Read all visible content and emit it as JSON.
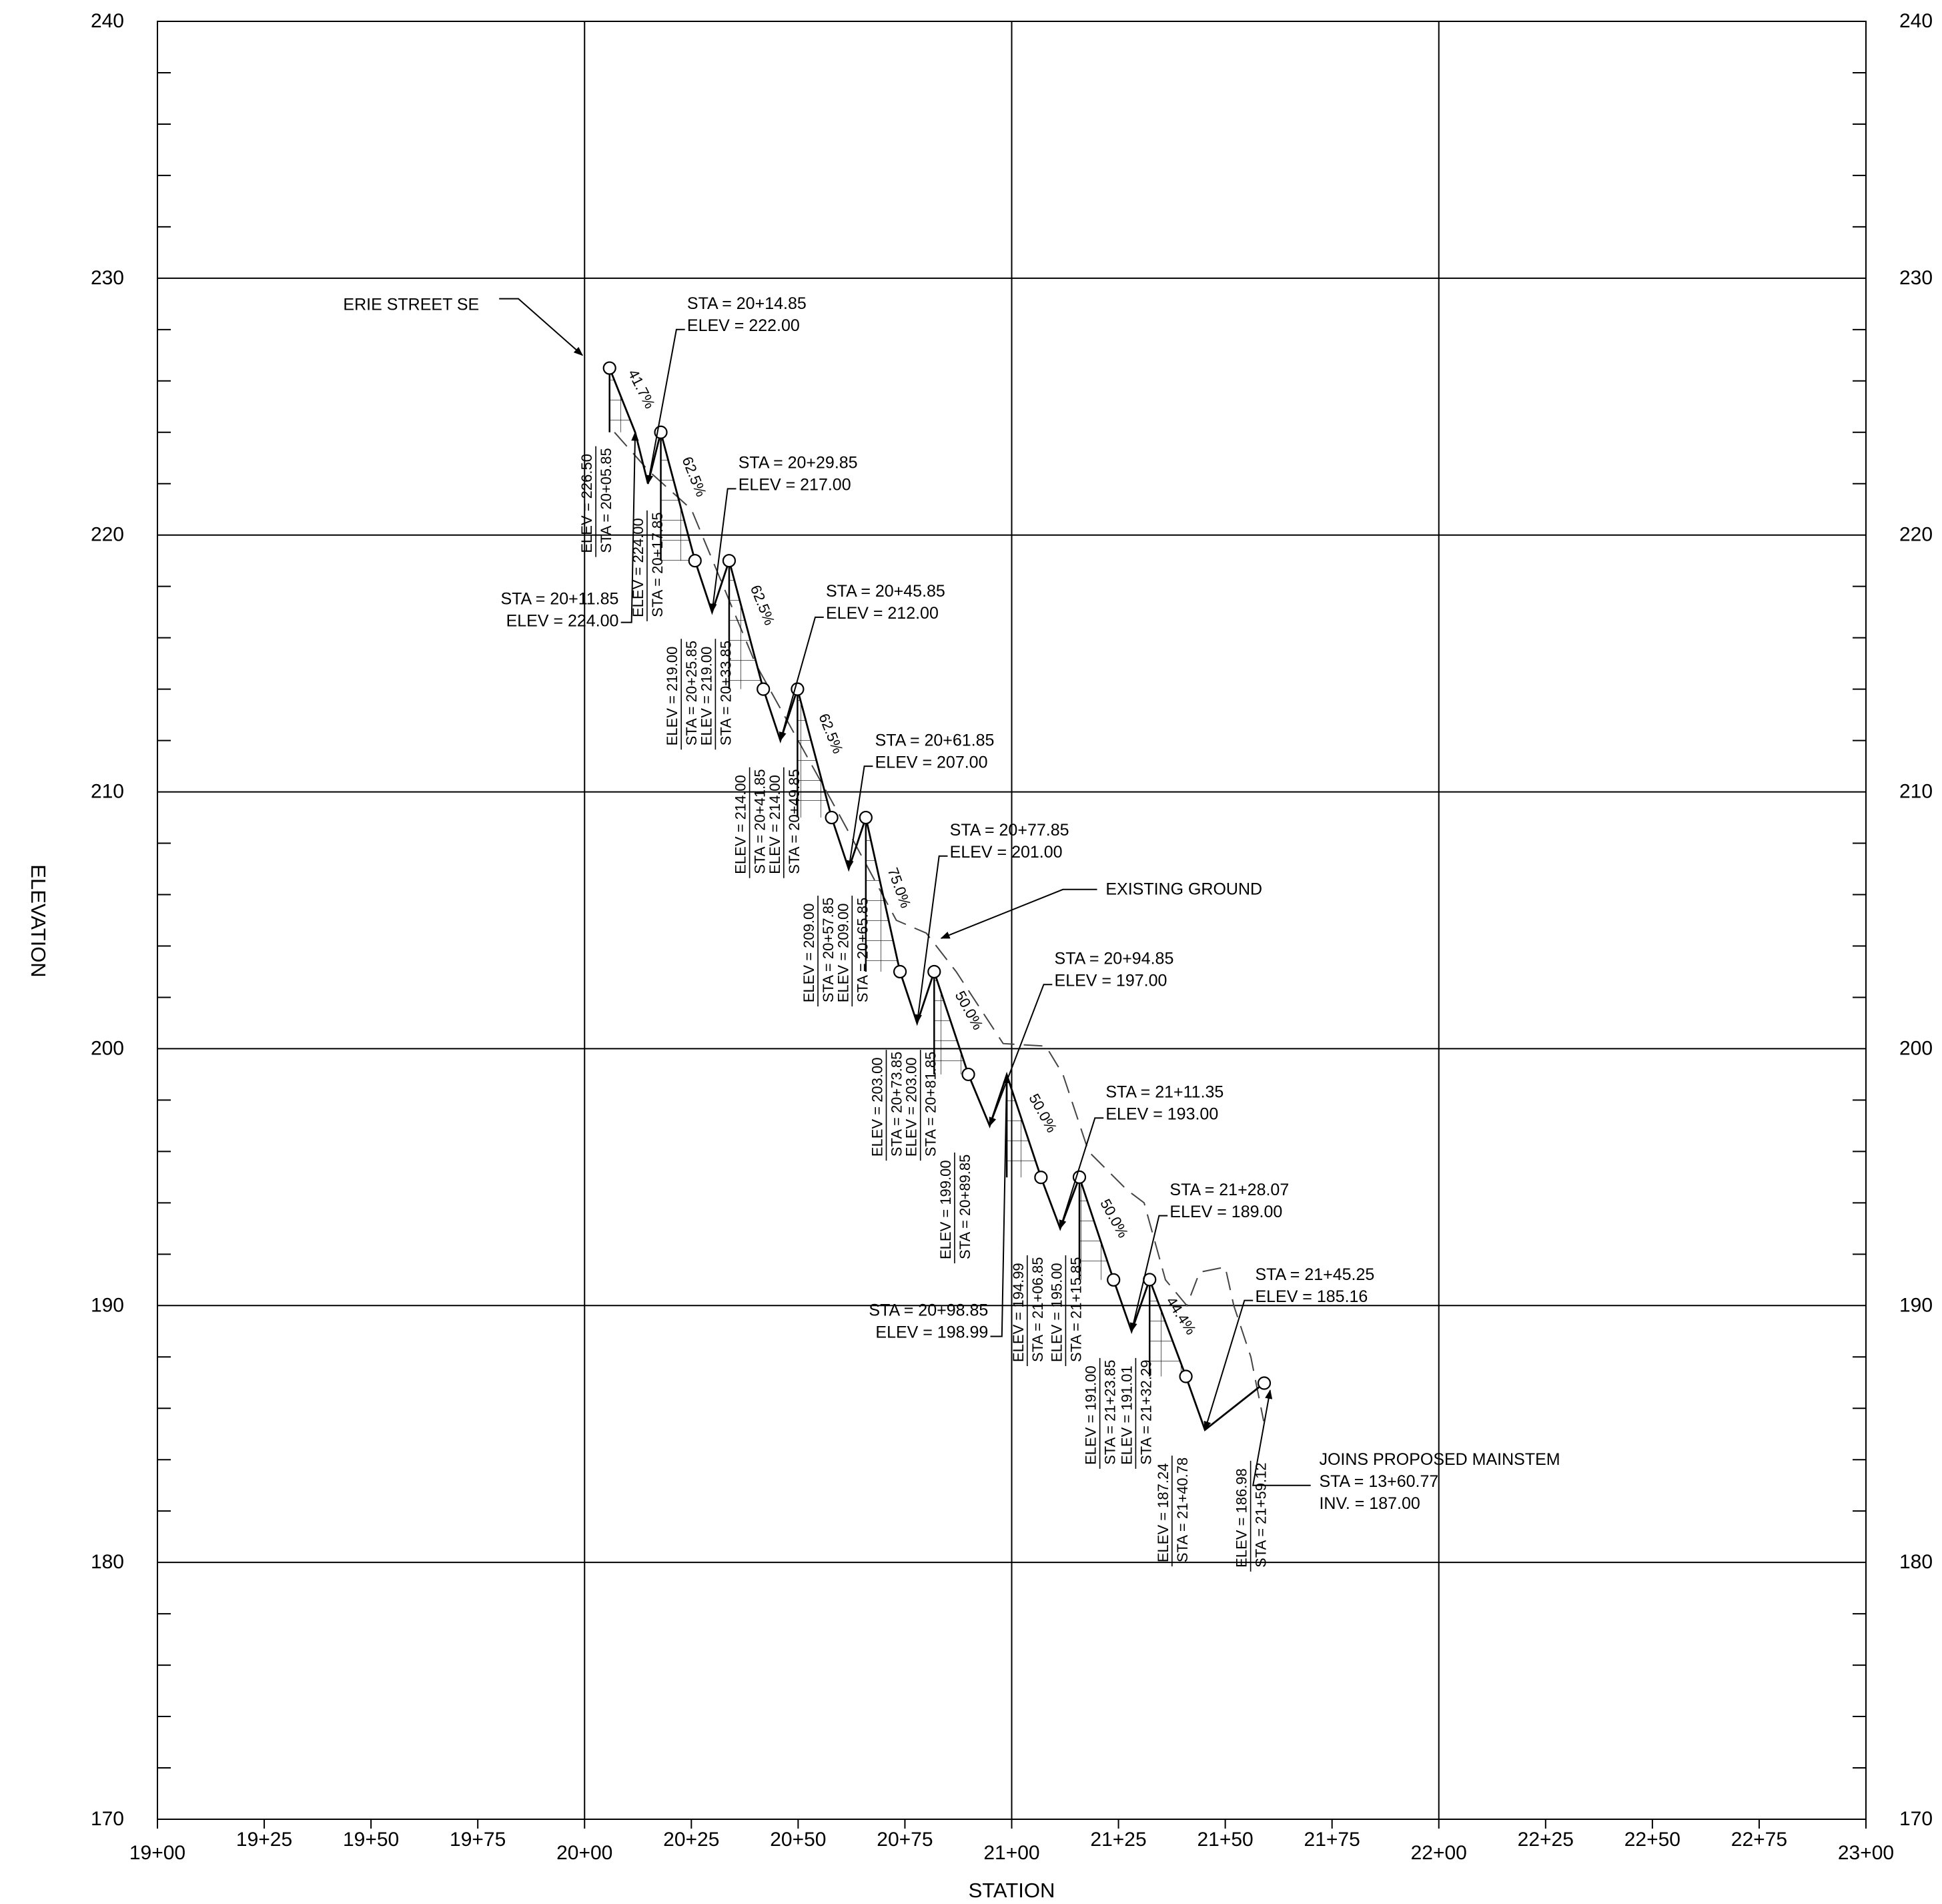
{
  "axes": {
    "x_title": "STATION",
    "y_title": "ELEVATION",
    "x_ticks": [
      "19+00",
      "19+25",
      "19+50",
      "19+75",
      "20+00",
      "20+25",
      "20+50",
      "20+75",
      "21+00",
      "21+25",
      "21+50",
      "21+75",
      "22+00",
      "22+25",
      "22+50",
      "22+75",
      "23+00"
    ],
    "y_ticks": [
      "170",
      "180",
      "190",
      "200",
      "210",
      "220",
      "230",
      "240"
    ]
  },
  "profile": {
    "drops": [
      {
        "x": 2005.85,
        "top": 226.5,
        "bottom": 224.0
      },
      {
        "x": 2017.85,
        "top": 224.0,
        "bottom": 219.0
      },
      {
        "x": 2033.85,
        "top": 219.0,
        "bottom": 214.0
      },
      {
        "x": 2049.85,
        "top": 214.0,
        "bottom": 209.0
      },
      {
        "x": 2065.85,
        "top": 209.0,
        "bottom": 203.0
      },
      {
        "x": 2081.85,
        "top": 203.0,
        "bottom": 199.0
      },
      {
        "x": 2098.85,
        "top": 198.99,
        "bottom": 194.99
      },
      {
        "x": 2115.85,
        "top": 195.0,
        "bottom": 191.0
      },
      {
        "x": 2132.29,
        "top": 191.01,
        "bottom": 187.24
      }
    ],
    "zigzag": [
      [
        2005.85,
        226.5
      ],
      [
        2011.85,
        224.0
      ],
      [
        2014.85,
        222.0
      ],
      [
        2017.85,
        224.0
      ],
      [
        2025.85,
        219.0
      ],
      [
        2029.85,
        217.0
      ],
      [
        2033.85,
        219.0
      ],
      [
        2041.85,
        214.0
      ],
      [
        2045.85,
        212.0
      ],
      [
        2049.85,
        214.0
      ],
      [
        2057.85,
        209.0
      ],
      [
        2061.85,
        207.0
      ],
      [
        2065.85,
        209.0
      ],
      [
        2073.85,
        203.0
      ],
      [
        2077.85,
        201.0
      ],
      [
        2081.85,
        203.0
      ],
      [
        2089.85,
        199.0
      ],
      [
        2094.85,
        197.0
      ],
      [
        2098.85,
        198.99
      ],
      [
        2106.85,
        194.99
      ],
      [
        2111.35,
        193.0
      ],
      [
        2115.85,
        195.0
      ],
      [
        2123.85,
        191.0
      ],
      [
        2128.07,
        189.0
      ],
      [
        2132.29,
        191.01
      ],
      [
        2140.78,
        187.24
      ],
      [
        2145.25,
        185.16
      ],
      [
        2159.12,
        186.98
      ]
    ],
    "circles": [
      [
        2005.85,
        226.5
      ],
      [
        2017.85,
        224.0
      ],
      [
        2025.85,
        219.0
      ],
      [
        2033.85,
        219.0
      ],
      [
        2041.85,
        214.0
      ],
      [
        2049.85,
        214.0
      ],
      [
        2057.85,
        209.0
      ],
      [
        2065.85,
        209.0
      ],
      [
        2073.85,
        203.0
      ],
      [
        2081.85,
        203.0
      ],
      [
        2089.85,
        199.0
      ],
      [
        2106.85,
        194.99
      ],
      [
        2115.85,
        195.0
      ],
      [
        2123.85,
        191.0
      ],
      [
        2132.29,
        191.01
      ],
      [
        2140.78,
        187.24
      ],
      [
        2159.12,
        186.98
      ]
    ]
  },
  "existing_ground": [
    [
      2007,
      224.0
    ],
    [
      2015,
      222.5
    ],
    [
      2025,
      221.0
    ],
    [
      2040,
      215.0
    ],
    [
      2050,
      212.0
    ],
    [
      2060,
      209.0
    ],
    [
      2073,
      205.0
    ],
    [
      2080,
      204.5
    ],
    [
      2087,
      203.0
    ],
    [
      2098,
      200.2
    ],
    [
      2108,
      200.1
    ],
    [
      2112,
      199.0
    ],
    [
      2118,
      196.0
    ],
    [
      2127,
      194.5
    ],
    [
      2131,
      194.0
    ],
    [
      2136,
      191.0
    ],
    [
      2141,
      190.0
    ],
    [
      2144,
      191.3
    ],
    [
      2150,
      191.5
    ],
    [
      2152,
      190.0
    ],
    [
      2156,
      188.0
    ],
    [
      2159,
      185.5
    ]
  ],
  "slopes": [
    {
      "text": "41.7%",
      "x": 2012.3,
      "y": 225.6,
      "angle": 63
    },
    {
      "text": "62.5%",
      "x": 2024.6,
      "y": 222.2,
      "angle": 68
    },
    {
      "text": "62.5%",
      "x": 2040.6,
      "y": 217.2,
      "angle": 68
    },
    {
      "text": "62.5%",
      "x": 2056.6,
      "y": 212.2,
      "angle": 68
    },
    {
      "text": "75.0%",
      "x": 2072.6,
      "y": 206.2,
      "angle": 70
    },
    {
      "text": "50.0%",
      "x": 2089.0,
      "y": 201.4,
      "angle": 61
    },
    {
      "text": "50.0%",
      "x": 2106.3,
      "y": 197.4,
      "angle": 61
    },
    {
      "text": "50.0%",
      "x": 2123.0,
      "y": 193.3,
      "angle": 61
    },
    {
      "text": "44.4%",
      "x": 2138.7,
      "y": 189.5,
      "angle": 57
    }
  ],
  "vertical_labels": [
    {
      "x": 2001.7,
      "y": 219.3,
      "lines": [
        "ELEV = 226.50",
        "STA = 20+05.85"
      ]
    },
    {
      "x": 2013.7,
      "y": 216.8,
      "lines": [
        "ELEV = 224.00",
        "STA = 20+17.85"
      ]
    },
    {
      "x": 2021.7,
      "y": 211.8,
      "lines": [
        "ELEV = 219.00",
        "STA = 20+25.85"
      ]
    },
    {
      "x": 2029.7,
      "y": 211.8,
      "lines": [
        "ELEV = 219.00",
        "STA = 20+33.85"
      ]
    },
    {
      "x": 2037.7,
      "y": 206.8,
      "lines": [
        "ELEV = 214.00",
        "STA = 20+41.85"
      ]
    },
    {
      "x": 2045.7,
      "y": 206.8,
      "lines": [
        "ELEV = 214.00",
        "STA = 20+49.85"
      ]
    },
    {
      "x": 2053.7,
      "y": 201.8,
      "lines": [
        "ELEV = 209.00",
        "STA = 20+57.85"
      ]
    },
    {
      "x": 2061.7,
      "y": 201.8,
      "lines": [
        "ELEV = 209.00",
        "STA = 20+65.85"
      ]
    },
    {
      "x": 2069.7,
      "y": 195.8,
      "lines": [
        "ELEV = 203.00",
        "STA = 20+73.85"
      ]
    },
    {
      "x": 2077.7,
      "y": 195.8,
      "lines": [
        "ELEV = 203.00",
        "STA = 20+81.85"
      ]
    },
    {
      "x": 2085.7,
      "y": 191.8,
      "lines": [
        "ELEV = 199.00",
        "STA = 20+89.85"
      ]
    },
    {
      "x": 2102.7,
      "y": 187.8,
      "lines": [
        "ELEV = 194.99",
        "STA = 21+06.85"
      ]
    },
    {
      "x": 2111.7,
      "y": 187.8,
      "lines": [
        "ELEV = 195.00",
        "STA = 21+15.85"
      ]
    },
    {
      "x": 2119.7,
      "y": 183.8,
      "lines": [
        "ELEV = 191.00",
        "STA = 21+23.85"
      ]
    },
    {
      "x": 2128.1,
      "y": 183.8,
      "lines": [
        "ELEV = 191.01",
        "STA = 21+32.29"
      ]
    },
    {
      "x": 2136.6,
      "y": 180.0,
      "lines": [
        "ELEV = 187.24",
        "STA = 21+40.78"
      ]
    },
    {
      "x": 2155.0,
      "y": 179.8,
      "lines": [
        "ELEV = 186.98",
        "STA = 21+59.12"
      ]
    }
  ],
  "callouts": [
    {
      "lines": [
        "STA = 20+14.85",
        "ELEV =  222.00"
      ],
      "tx": 2024,
      "ty": 228.8,
      "leader": [
        [
          2023.5,
          228.0
        ],
        [
          2021.5,
          228.0
        ],
        [
          2014.85,
          222.0
        ]
      ]
    },
    {
      "lines": [
        "STA = 20+29.85",
        "ELEV =  217.00"
      ],
      "tx": 2036,
      "ty": 222.6,
      "leader": [
        [
          2035.5,
          221.8
        ],
        [
          2033.5,
          221.8
        ],
        [
          2029.85,
          217.0
        ]
      ]
    },
    {
      "lines": [
        "STA = 20+45.85",
        "ELEV =  212.00"
      ],
      "tx": 2056.5,
      "ty": 217.6,
      "leader": [
        [
          2056.0,
          216.8
        ],
        [
          2054.0,
          216.8
        ],
        [
          2045.85,
          212.0
        ]
      ]
    },
    {
      "lines": [
        "STA = 20+61.85",
        "ELEV =  207.00"
      ],
      "tx": 2068,
      "ty": 211.8,
      "leader": [
        [
          2067.5,
          211.0
        ],
        [
          2065.5,
          211.0
        ],
        [
          2061.85,
          207.0
        ]
      ]
    },
    {
      "lines": [
        "STA = 20+77.85",
        "ELEV =  201.00"
      ],
      "tx": 2085.5,
      "ty": 208.3,
      "leader": [
        [
          2085.0,
          207.5
        ],
        [
          2083.0,
          207.5
        ],
        [
          2077.85,
          201.0
        ]
      ]
    },
    {
      "lines": [
        "STA = 20+94.85",
        "ELEV =  197.00"
      ],
      "tx": 2110,
      "ty": 203.3,
      "leader": [
        [
          2109.5,
          202.5
        ],
        [
          2107.5,
          202.5
        ],
        [
          2094.85,
          197.0
        ]
      ]
    },
    {
      "lines": [
        "STA = 21+11.35",
        "ELEV =  193.00"
      ],
      "tx": 2122,
      "ty": 198.1,
      "leader": [
        [
          2121.5,
          197.3
        ],
        [
          2119.5,
          197.3
        ],
        [
          2111.35,
          193.0
        ]
      ]
    },
    {
      "lines": [
        "STA = 21+28.07",
        "ELEV =  189.00"
      ],
      "tx": 2137,
      "ty": 194.3,
      "leader": [
        [
          2136.5,
          193.5
        ],
        [
          2134.5,
          193.5
        ],
        [
          2128.07,
          189.0
        ]
      ]
    },
    {
      "lines": [
        "STA = 21+45.25",
        "ELEV =  185.16"
      ],
      "tx": 2157,
      "ty": 191.0,
      "leader": [
        [
          2156.5,
          190.2
        ],
        [
          2154.5,
          190.2
        ],
        [
          2145.25,
          185.16
        ]
      ]
    },
    {
      "lines": [
        "STA = 20+11.85",
        "ELEV =  224.00"
      ],
      "tx": 2008,
      "ty": 217.3,
      "anchor": "end",
      "leader": [
        [
          2008.5,
          216.6
        ],
        [
          2011.0,
          216.6
        ],
        [
          2011.85,
          224.0
        ]
      ]
    },
    {
      "lines": [
        "STA = 20+98.85",
        "ELEV =  198.99"
      ],
      "tx": 2094.5,
      "ty": 189.6,
      "anchor": "end",
      "leader": [
        [
          2095.0,
          188.8
        ],
        [
          2097.7,
          188.8
        ],
        [
          2098.85,
          198.99
        ]
      ]
    }
  ],
  "erie": {
    "text": "ERIE STREET SE",
    "tx": 1962,
    "ty": 229.0,
    "leader": [
      [
        1980,
        229.2
      ],
      [
        1984.5,
        229.2
      ],
      [
        1999.5,
        227.0
      ]
    ]
  },
  "existing_ground_label": {
    "text": "EXISTING GROUND",
    "tx": 2122,
    "ty": 206.0,
    "leader": [
      [
        2120,
        206.2
      ],
      [
        2112,
        206.2
      ],
      [
        2083.5,
        204.3
      ]
    ]
  },
  "mainstem": {
    "lines": [
      "JOINS PROPOSED MAINSTEM",
      "STA = 13+60.77",
      "INV. = 187.00"
    ],
    "tx": 2172,
    "ty": 183.8,
    "leader": [
      [
        2170,
        183.0
      ],
      [
        2156.5,
        183.0
      ],
      [
        2160.5,
        186.7
      ]
    ]
  }
}
